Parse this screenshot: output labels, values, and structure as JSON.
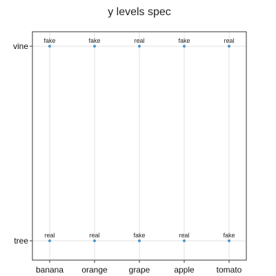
{
  "chart_data": {
    "type": "scatter",
    "title": "y levels spec",
    "xlabel": "",
    "ylabel": "",
    "x_categories": [
      "banana",
      "orange",
      "grape",
      "apple",
      "tomato"
    ],
    "y_categories": [
      "tree",
      "vine"
    ],
    "grid": true,
    "legend": "none",
    "point_color": "#4c96c8",
    "points": [
      {
        "x": "banana",
        "y": "tree",
        "label": "real"
      },
      {
        "x": "orange",
        "y": "tree",
        "label": "real"
      },
      {
        "x": "grape",
        "y": "tree",
        "label": "fake"
      },
      {
        "x": "apple",
        "y": "tree",
        "label": "real"
      },
      {
        "x": "tomato",
        "y": "tree",
        "label": "fake"
      },
      {
        "x": "banana",
        "y": "vine",
        "label": "fake"
      },
      {
        "x": "orange",
        "y": "vine",
        "label": "fake"
      },
      {
        "x": "grape",
        "y": "vine",
        "label": "real"
      },
      {
        "x": "apple",
        "y": "vine",
        "label": "fake"
      },
      {
        "x": "tomato",
        "y": "vine",
        "label": "real"
      }
    ]
  }
}
